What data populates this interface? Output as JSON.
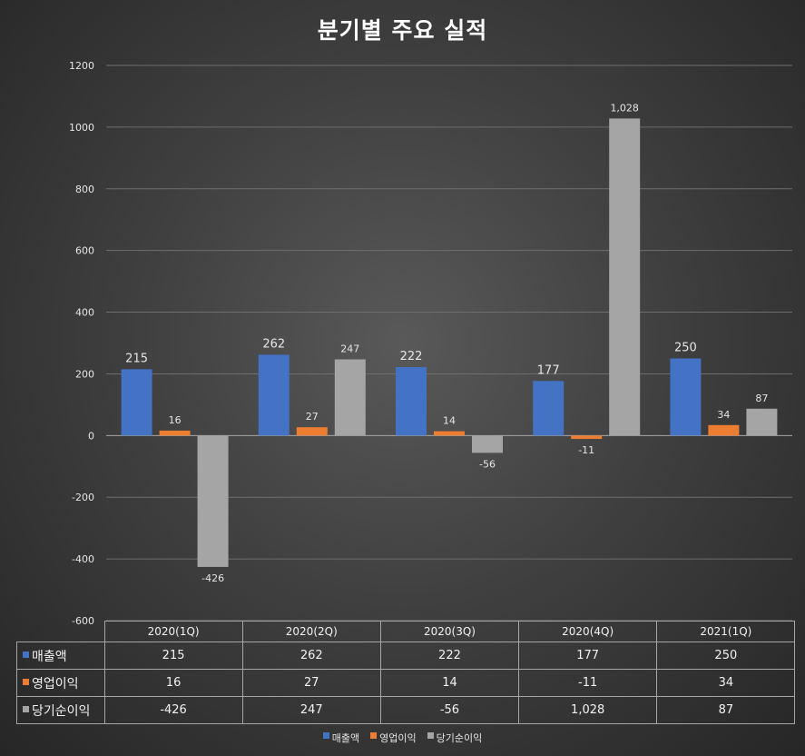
{
  "chart_data": {
    "type": "bar",
    "title": "분기별 주요 실적",
    "categories": [
      "2020(1Q)",
      "2020(2Q)",
      "2020(3Q)",
      "2020(4Q)",
      "2021(1Q)"
    ],
    "series": [
      {
        "name": "매출액",
        "values": [
          215,
          262,
          222,
          177,
          250
        ],
        "labels": [
          "215",
          "262",
          "222",
          "177",
          "250"
        ],
        "color": "#4472C4"
      },
      {
        "name": "영업이익",
        "values": [
          16,
          27,
          14,
          -11,
          34
        ],
        "labels": [
          "16",
          "27",
          "14",
          "-11",
          "34"
        ],
        "color": "#ED7D31"
      },
      {
        "name": "당기순이익",
        "values": [
          -426,
          247,
          -56,
          1028,
          87
        ],
        "labels": [
          "-426",
          "247",
          "-56",
          "1,028",
          "87"
        ],
        "color": "#A5A5A5"
      }
    ],
    "ylim": [
      -600,
      1200
    ],
    "yticks": [
      1200,
      1000,
      800,
      600,
      400,
      200,
      0,
      -200,
      -400,
      -600
    ],
    "grid": true,
    "legend_position": "bottom",
    "data_table": true
  }
}
